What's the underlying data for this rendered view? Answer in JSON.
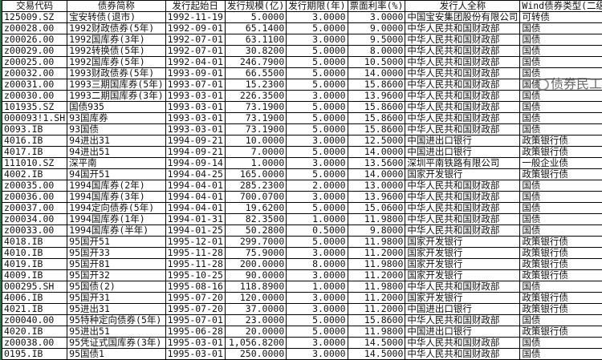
{
  "columns": [
    "交易代码",
    "债券简称",
    "发行起始日",
    "发行规模(亿)",
    "发行期限(年)",
    "票面利率(%)",
    "发行人全称",
    "Wind债券类型(二级)"
  ],
  "rows": [
    [
      "125009.SZ",
      "宝安转债(退市)",
      "1992-11-19",
      "5.0000",
      "3.0000",
      "3.0000",
      "中国宝安集团股份有限公司",
      "可转债"
    ],
    [
      "z00028.00",
      "1992财政债券(5年)",
      "1992-09-01",
      "65.1400",
      "5.0000",
      "9.0000",
      "中华人民共和国财政部",
      "国债"
    ],
    [
      "z00026.00",
      "1992国库券(3年)",
      "1992-07-01",
      "63.1100",
      "3.0000",
      "9.5000",
      "中华人民共和国财政部",
      "国债"
    ],
    [
      "z00029.00",
      "1992转换债(5年)",
      "1992-07-01",
      "30.8200",
      "5.0000",
      "8.0000",
      "中华人民共和国财政部",
      "国债"
    ],
    [
      "z00025.00",
      "1992国库券(5年)",
      "1992-04-01",
      "246.7900",
      "5.0000",
      "10.5000",
      "中华人民共和国财政部",
      "国债"
    ],
    [
      "z00032.00",
      "1993财政债券(5年)",
      "1993-09-01",
      "66.5500",
      "5.0000",
      "14.0000",
      "中华人民共和国财政部",
      "国债"
    ],
    [
      "z00031.00",
      "1993三期国库券(5年)",
      "1993-07-01",
      "15.2300",
      "5.0000",
      "15.8600",
      "中华人民共和国财政部",
      "国债"
    ],
    [
      "z00030.00",
      "1993二期国库券(3年)",
      "1993-03-01",
      "226.3500",
      "3.0000",
      "13.9600",
      "中华人民共和国财政部",
      "国债"
    ],
    [
      "101935.SZ",
      "国债935",
      "1993-03-01",
      "73.1900",
      "5.0000",
      "15.8600",
      "中华人民共和国财政部",
      "国债"
    ],
    [
      "000093!1.SH",
      "93国库券",
      "1993-03-01",
      "73.1900",
      "5.0000",
      "15.8600",
      "中华人民共和国财政部",
      "国债"
    ],
    [
      "0093.IB",
      "93国债",
      "1993-03-01",
      "73.1900",
      "5.0000",
      "15.8600",
      "中华人民共和国财政部",
      "国债"
    ],
    [
      "4016.IB",
      "94进出31",
      "1994-09-21",
      "10.0000",
      "3.0000",
      "12.5000",
      "中国进出口银行",
      "政策银行债"
    ],
    [
      "4017.IB",
      "94进出51",
      "1994-09-21",
      "7.0000",
      "5.0000",
      "14.0000",
      "中国进出口银行",
      "政策银行债"
    ],
    [
      "111010.SZ",
      "深平南",
      "1994-09-14",
      "1.0000",
      "3.0000",
      "13.5600",
      "深圳平南铁路有限公司",
      "一般企业债"
    ],
    [
      "4002.IB",
      "94国开51",
      "1994-04-25",
      "165.0000",
      "5.0000",
      "14.0000",
      "国家开发银行",
      "政策银行债"
    ],
    [
      "z00035.00",
      "1994国库券(2年)",
      "1994-04-01",
      "285.2300",
      "2.0000",
      "13.0000",
      "中华人民共和国财政部",
      "国债"
    ],
    [
      "z00036.00",
      "1994国库券(3年)",
      "1994-04-01",
      "700.0700",
      "3.0000",
      "13.9600",
      "中华人民共和国财政部",
      "国债"
    ],
    [
      "z00037.00",
      "1994定向债券(5年)",
      "1994-04-01",
      "19.6200",
      "5.0000",
      "15.0600",
      "中华人民共和国财政部",
      "国债"
    ],
    [
      "z00034.00",
      "1994国库券(1年)",
      "1994-01-31",
      "82.3500",
      "1.0000",
      "11.9800",
      "中华人民共和国财政部",
      "国债"
    ],
    [
      "z00033.00",
      "1994国库券(半年)",
      "1994-01-25",
      "50.2800",
      "0.5000",
      "9.8000",
      "中华人民共和国财政部",
      "国债"
    ],
    [
      "4018.IB",
      "95国开51",
      "1995-12-01",
      "299.7000",
      "5.0000",
      "11.9800",
      "国家开发银行",
      "政策银行债"
    ],
    [
      "4010.IB",
      "95国开33",
      "1995-11-28",
      "75.9000",
      "3.0000",
      "11.2000",
      "国家开发银行",
      "政策银行债"
    ],
    [
      "4019.IB",
      "95国开81",
      "1995-11-28",
      "200.0000",
      "8.0000",
      "11.9800",
      "国家开发银行",
      "政策银行债"
    ],
    [
      "4009.IB",
      "95国开32",
      "1995-10-25",
      "90.0000",
      "3.0000",
      "11.2000",
      "国家开发银行",
      "政策银行债"
    ],
    [
      "000295.SH",
      "95国债(2)",
      "1995-08-16",
      "118.8900",
      "1.0000",
      "11.9800",
      "中华人民共和国财政部",
      "国债"
    ],
    [
      "4006.IB",
      "95国开31",
      "1995-07-20",
      "120.0000",
      "3.0000",
      "11.2000",
      "国家开发银行",
      "政策银行债"
    ],
    [
      "4021.IB",
      "95进出31",
      "1995-07-20",
      "37.0000",
      "3.0000",
      "11.2000",
      "中国进出口银行",
      "政策银行债"
    ],
    [
      "z00040.00",
      "95特种定向债券(5年)",
      "1995-07-01",
      "23.0000",
      "5.0000",
      "15.8600",
      "中华人民共和国财政部",
      "国债"
    ],
    [
      "4020.IB",
      "95进出51",
      "1995-06-28",
      "20.0000",
      "5.0000",
      "11.9800",
      "中国进出口银行",
      "政策银行债"
    ],
    [
      "z00038.00",
      "95凭证式国库券(3年)",
      "1995-03-01",
      "1,056.8200",
      "3.0000",
      "14.5000",
      "中华人民共和国财政部",
      "国债"
    ],
    [
      "0195.IB",
      "95国债1",
      "1995-03-01",
      "250.0000",
      "3.0000",
      "14.5000",
      "中华人民共和国财政部",
      "国债"
    ]
  ],
  "watermark": {
    "text": "债券民工",
    "icon": "wechat-icon"
  }
}
